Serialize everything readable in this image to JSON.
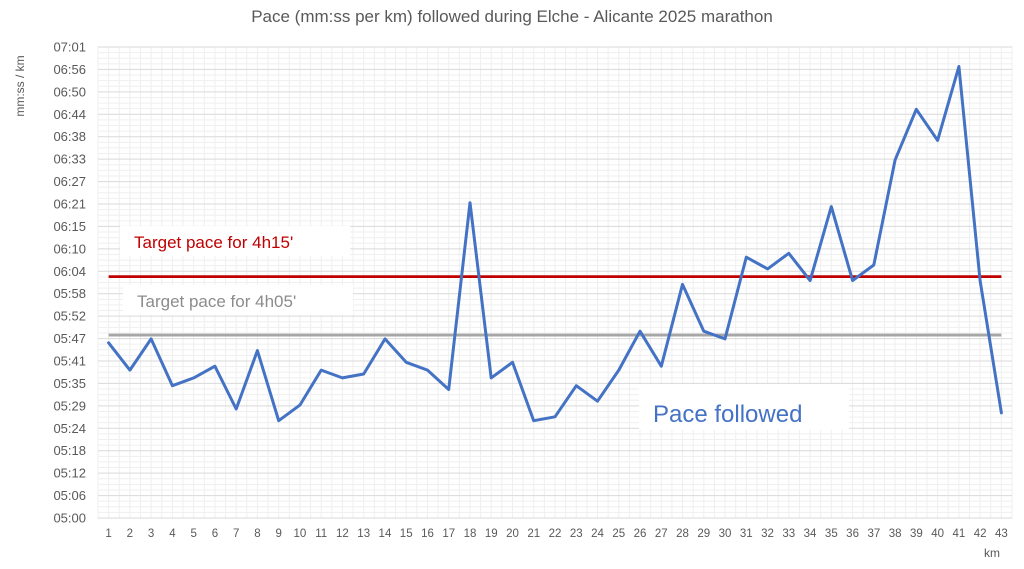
{
  "chart_data": {
    "type": "line",
    "title": "Pace (mm:ss per km) followed during Elche - Alicante 2025 marathon",
    "xlabel": "km",
    "ylabel": "mm:ss / km",
    "x": [
      1,
      2,
      3,
      4,
      5,
      6,
      7,
      8,
      9,
      10,
      11,
      12,
      13,
      14,
      15,
      16,
      17,
      18,
      19,
      20,
      21,
      22,
      23,
      24,
      25,
      26,
      27,
      28,
      29,
      30,
      31,
      32,
      33,
      34,
      35,
      36,
      37,
      38,
      39,
      40,
      41,
      42,
      43
    ],
    "ylim": [
      "05:00",
      "07:01"
    ],
    "y_ticks": [
      "05:00",
      "05:06",
      "05:12",
      "05:18",
      "05:24",
      "05:29",
      "05:35",
      "05:41",
      "05:47",
      "05:52",
      "05:58",
      "06:04",
      "06:10",
      "06:15",
      "06:21",
      "06:27",
      "06:33",
      "06:38",
      "06:44",
      "06:50",
      "06:56",
      "07:01"
    ],
    "grid": true,
    "series": [
      {
        "name": "Pace followed",
        "color": "#4472c4",
        "values": [
          "05:45",
          "05:38",
          "05:46",
          "05:34",
          "05:36",
          "05:39",
          "05:28",
          "05:43",
          "05:25",
          "05:29",
          "05:38",
          "05:36",
          "05:37",
          "05:46",
          "05:40",
          "05:38",
          "05:33",
          "06:21",
          "05:36",
          "05:40",
          "05:25",
          "05:26",
          "05:34",
          "05:30",
          "05:38",
          "05:48",
          "05:39",
          "06:00",
          "05:48",
          "05:46",
          "06:07",
          "06:04",
          "06:08",
          "06:01",
          "06:20",
          "06:01",
          "06:05",
          "06:32",
          "06:45",
          "06:37",
          "06:56",
          "06:01",
          "05:27"
        ]
      },
      {
        "name": "Target pace for 4h15'",
        "color": "#c00000",
        "value": "06:02"
      },
      {
        "name": "Target pace for 4h05'",
        "color": "#a6a6a6",
        "value": "05:47"
      }
    ]
  }
}
